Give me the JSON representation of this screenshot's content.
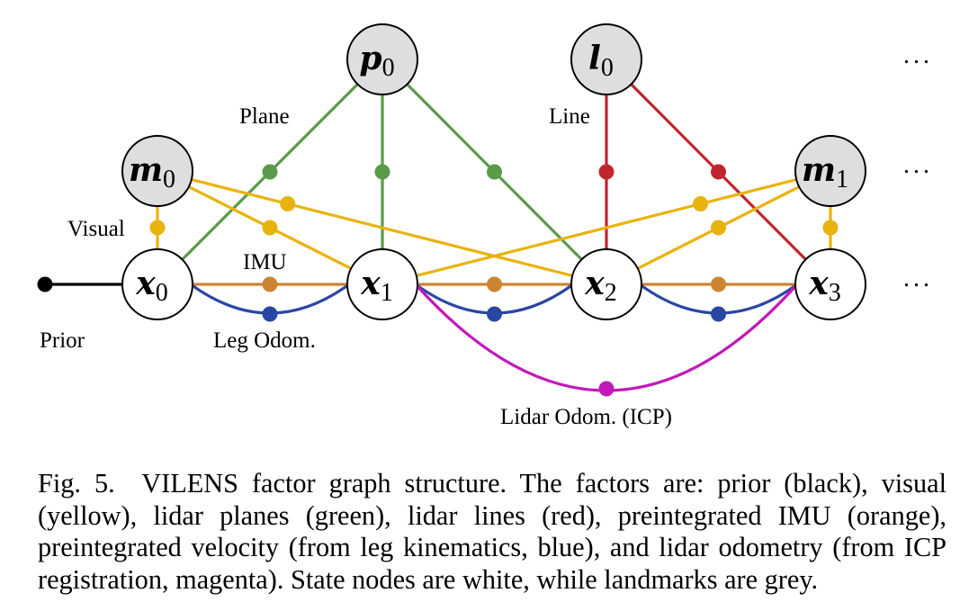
{
  "colors": {
    "prior": "#000000",
    "visual": "#e8b30c",
    "plane": "#5a9a4a",
    "line": "#c0262e",
    "imu": "#cc8433",
    "leg": "#2a46a4",
    "lidar_odom": "#c21ab8",
    "state_fill": "#ffffff",
    "landmark_fill": "#dedede"
  },
  "nodes": {
    "x0": {
      "sym": "x",
      "sub": "0",
      "kind": "state"
    },
    "x1": {
      "sym": "x",
      "sub": "1",
      "kind": "state"
    },
    "x2": {
      "sym": "x",
      "sub": "2",
      "kind": "state"
    },
    "x3": {
      "sym": "x",
      "sub": "3",
      "kind": "state"
    },
    "m0": {
      "sym": "m",
      "sub": "0",
      "kind": "landmark"
    },
    "m1": {
      "sym": "m",
      "sub": "1",
      "kind": "landmark"
    },
    "p0": {
      "sym": "p",
      "sub": "0",
      "kind": "landmark"
    },
    "l0": {
      "sym": "l",
      "sub": "0",
      "kind": "landmark"
    }
  },
  "factors": [
    {
      "type": "plane",
      "from": "p0",
      "to": "x0"
    },
    {
      "type": "plane",
      "from": "p0",
      "to": "x1"
    },
    {
      "type": "plane",
      "from": "p0",
      "to": "x2"
    },
    {
      "type": "line",
      "from": "l0",
      "to": "x2"
    },
    {
      "type": "line",
      "from": "l0",
      "to": "x3"
    },
    {
      "type": "visual",
      "from": "m0",
      "to": "x0"
    },
    {
      "type": "visual",
      "from": "m0",
      "to": "x1"
    },
    {
      "type": "visual",
      "from": "m0",
      "to": "x2"
    },
    {
      "type": "visual",
      "from": "m1",
      "to": "x1"
    },
    {
      "type": "visual",
      "from": "m1",
      "to": "x2"
    },
    {
      "type": "visual",
      "from": "m1",
      "to": "x3"
    },
    {
      "type": "imu",
      "from": "x0",
      "to": "x1"
    },
    {
      "type": "imu",
      "from": "x1",
      "to": "x2"
    },
    {
      "type": "imu",
      "from": "x2",
      "to": "x3"
    },
    {
      "type": "leg",
      "from": "x0",
      "to": "x1"
    },
    {
      "type": "leg",
      "from": "x1",
      "to": "x2"
    },
    {
      "type": "leg",
      "from": "x2",
      "to": "x3"
    },
    {
      "type": "lidar_odom",
      "from": "x1",
      "to": "x3"
    },
    {
      "type": "prior",
      "from": "start",
      "to": "x0"
    }
  ],
  "labels": {
    "plane": "Plane",
    "line": "Line",
    "visual": "Visual",
    "imu": "IMU",
    "prior": "Prior",
    "leg": "Leg Odom.",
    "lidar_odom": "Lidar Odom. (ICP)"
  },
  "ellipsis": "...",
  "caption": "Fig. 5.  VILENS factor graph structure. The factors are: prior (black), visual (yellow), lidar planes (green), lidar lines (red), preintegrated IMU (orange), preintegrated velocity (from leg kinematics, blue), and lidar odometry (from ICP registration, magenta). State nodes are white, while landmarks are grey."
}
